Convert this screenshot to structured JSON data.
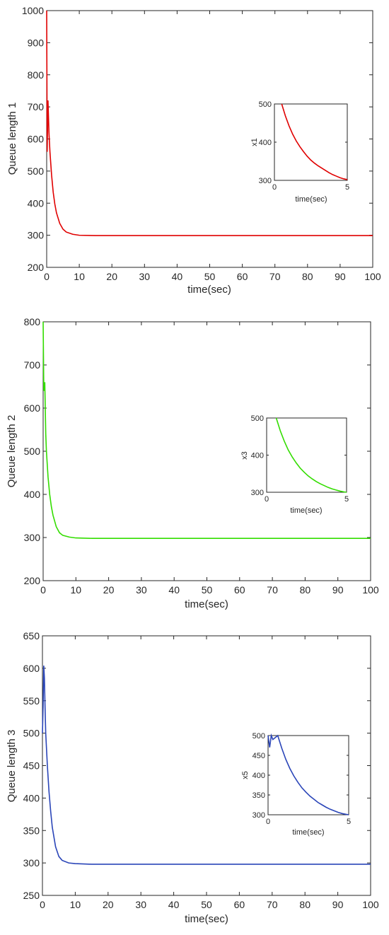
{
  "chart_data": [
    {
      "type": "line",
      "xlabel": "time(sec)",
      "ylabel": "Queue length 1",
      "xlim": [
        0,
        100
      ],
      "ylim": [
        200,
        1000
      ],
      "xticks": [
        0,
        10,
        20,
        30,
        40,
        50,
        60,
        70,
        80,
        90,
        100
      ],
      "yticks": [
        200,
        300,
        400,
        500,
        600,
        700,
        800,
        900,
        1000
      ],
      "color": "#e00000",
      "series": [
        {
          "x": [
            0,
            0.15,
            0.4,
            0.7,
            1,
            1.5,
            2,
            2.5,
            3,
            4,
            5,
            6,
            8,
            10,
            15,
            20,
            30,
            40,
            50,
            60,
            70,
            80,
            90,
            100
          ],
          "y": [
            1000,
            560,
            720,
            620,
            560,
            488,
            434,
            397,
            370,
            337,
            319,
            310,
            303,
            300,
            299,
            299,
            299,
            299,
            299,
            299,
            299,
            299,
            299,
            299
          ]
        }
      ],
      "inset": {
        "xlabel": "time(sec)",
        "ylabel": "x1",
        "xlim": [
          0,
          5
        ],
        "ylim": [
          300,
          500
        ],
        "xticks": [
          0,
          5
        ],
        "yticks": [
          300,
          400,
          500
        ],
        "x": [
          0.5,
          0.75,
          1,
          1.25,
          1.5,
          1.75,
          2,
          2.25,
          2.5,
          2.75,
          3,
          3.25,
          3.5,
          3.75,
          4,
          4.25,
          4.5,
          4.75,
          5
        ],
        "y": [
          500,
          469,
          443,
          421,
          403,
          388,
          375,
          363,
          353,
          345,
          338,
          332,
          326,
          320,
          315,
          311,
          307,
          304,
          302
        ]
      }
    },
    {
      "type": "line",
      "xlabel": "time(sec)",
      "ylabel": "Queue length 2",
      "xlim": [
        0,
        100
      ],
      "ylim": [
        200,
        800
      ],
      "xticks": [
        0,
        10,
        20,
        30,
        40,
        50,
        60,
        70,
        80,
        90,
        100
      ],
      "yticks": [
        200,
        300,
        400,
        500,
        600,
        700,
        800
      ],
      "color": "#33dd00",
      "series": [
        {
          "x": [
            0,
            0.2,
            0.5,
            0.8,
            1,
            1.5,
            2,
            2.5,
            3,
            4,
            5,
            6,
            8,
            10,
            15,
            20,
            30,
            40,
            50,
            60,
            70,
            80,
            90,
            100
          ],
          "y": [
            800,
            640,
            660,
            540,
            500,
            440,
            400,
            372,
            352,
            325,
            311,
            305,
            301,
            299,
            298,
            298,
            298,
            298,
            298,
            298,
            298,
            298,
            298,
            298
          ]
        }
      ],
      "inset": {
        "xlabel": "time(sec)",
        "ylabel": "x3",
        "xlim": [
          0,
          5
        ],
        "ylim": [
          300,
          500
        ],
        "xticks": [
          0,
          5
        ],
        "yticks": [
          300,
          400,
          500
        ],
        "x": [
          0.6,
          0.85,
          1.1,
          1.35,
          1.6,
          1.85,
          2.1,
          2.35,
          2.6,
          2.85,
          3.1,
          3.35,
          3.6,
          3.85,
          4.1,
          4.35,
          4.6,
          4.85,
          5
        ],
        "y": [
          500,
          466,
          438,
          414,
          395,
          379,
          365,
          354,
          344,
          336,
          329,
          323,
          318,
          313,
          309,
          306,
          303,
          301,
          300
        ]
      }
    },
    {
      "type": "line",
      "xlabel": "time(sec)",
      "ylabel": "Queue length 3",
      "xlim": [
        0,
        100
      ],
      "ylim": [
        250,
        650
      ],
      "xticks": [
        0,
        10,
        20,
        30,
        40,
        50,
        60,
        70,
        80,
        90,
        100
      ],
      "yticks": [
        250,
        300,
        350,
        400,
        450,
        500,
        550,
        600,
        650
      ],
      "color": "#2a45b8",
      "series": [
        {
          "x": [
            0,
            0.2,
            0.4,
            0.6,
            0.8,
            1,
            1.5,
            2,
            2.5,
            3,
            4,
            5,
            6,
            8,
            10,
            15,
            20,
            30,
            40,
            50,
            60,
            70,
            80,
            90,
            100
          ],
          "y": [
            500,
            540,
            604,
            585,
            540,
            500,
            450,
            410,
            380,
            355,
            325,
            310,
            304,
            300,
            299,
            298,
            298,
            298,
            298,
            298,
            298,
            298,
            298,
            298,
            298
          ]
        }
      ],
      "inset": {
        "xlabel": "time(sec)",
        "ylabel": "x5",
        "xlim": [
          0,
          5
        ],
        "ylim": [
          300,
          500
        ],
        "xticks": [
          0,
          5
        ],
        "yticks": [
          300,
          350,
          400,
          450,
          500
        ],
        "x": [
          0,
          0.1,
          0.2,
          0.3,
          0.6,
          0.85,
          1.1,
          1.35,
          1.6,
          1.85,
          2.1,
          2.35,
          2.6,
          2.85,
          3.1,
          3.35,
          3.6,
          3.85,
          4.1,
          4.35,
          4.6,
          4.85,
          5
        ],
        "y": [
          500,
          470,
          500,
          490,
          500,
          468,
          440,
          417,
          398,
          382,
          368,
          357,
          347,
          339,
          331,
          325,
          319,
          314,
          310,
          306,
          303,
          301,
          300
        ]
      }
    }
  ]
}
